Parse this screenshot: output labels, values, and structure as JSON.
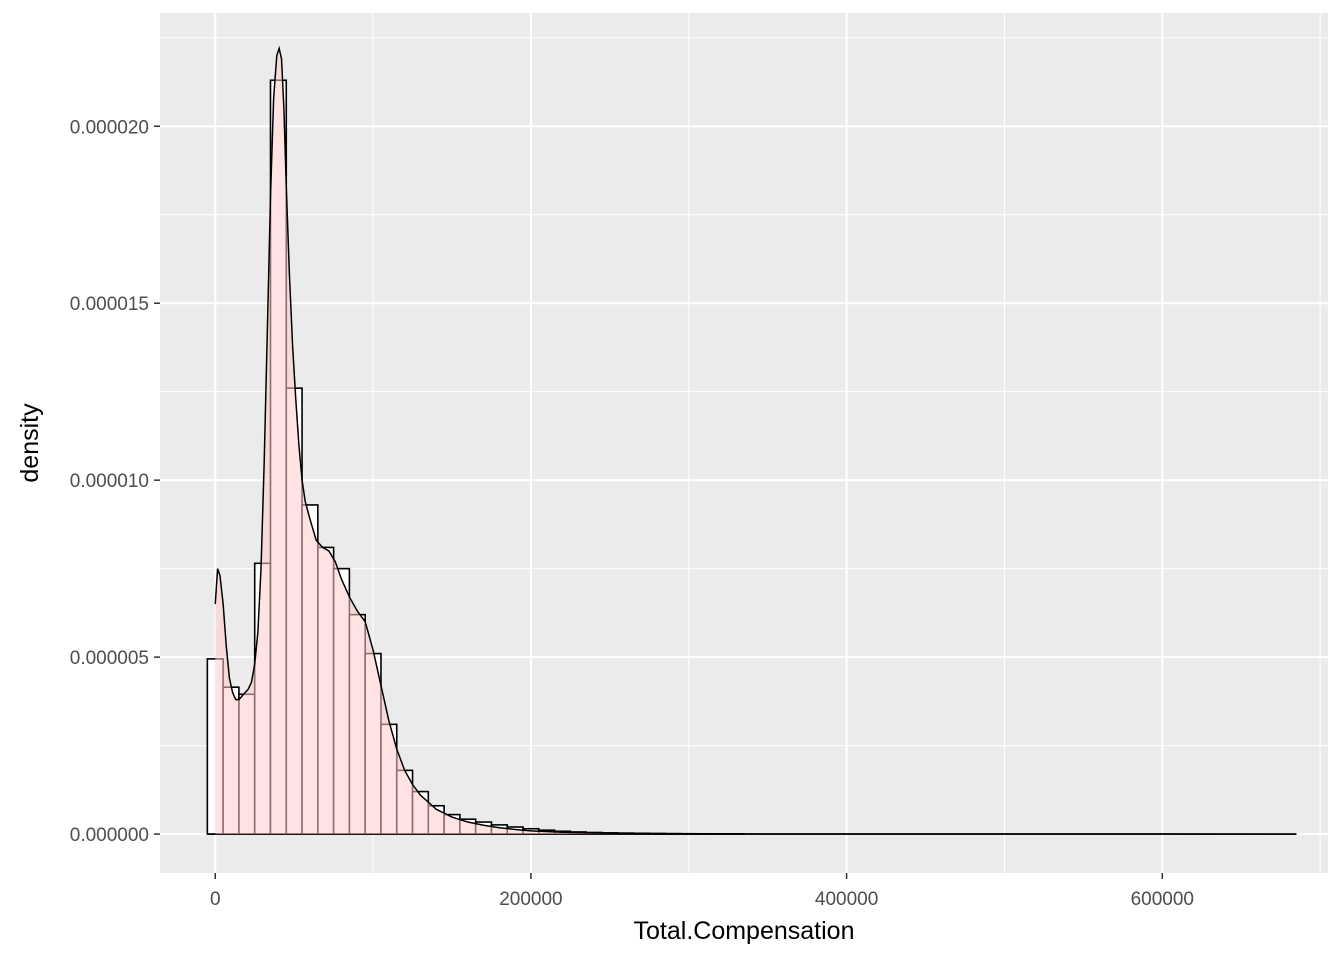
{
  "chart_data": {
    "type": "bar",
    "subtype": "histogram-with-density",
    "xlabel": "Total.Compensation",
    "ylabel": "density",
    "xlim": [
      -35000,
      705000
    ],
    "ylim": [
      -1.1e-06,
      2.32e-05
    ],
    "x_ticks": [
      0,
      200000,
      400000,
      600000
    ],
    "x_tick_labels": [
      "0",
      "200000",
      "400000",
      "600000"
    ],
    "y_ticks": [
      0,
      5e-06,
      1e-05,
      1.5e-05,
      2e-05
    ],
    "y_tick_labels": [
      "0.000000",
      "0.000005",
      "0.000010",
      "0.000015",
      "0.000020"
    ],
    "grid": true,
    "bin_width": 10000,
    "bins_start": -5000,
    "histogram_values": [
      4.95e-06,
      4.15e-06,
      3.95e-06,
      7.65e-06,
      2.13e-05,
      1.26e-05,
      9.3e-06,
      8.1e-06,
      7.5e-06,
      6.2e-06,
      5.1e-06,
      3.1e-06,
      1.8e-06,
      1.2e-06,
      8e-07,
      5.5e-07,
      4.2e-07,
      3.4e-07,
      2.6e-07,
      2e-07,
      1.5e-07,
      1.1e-07,
      8e-08,
      6e-08,
      4.5e-08,
      3.5e-08,
      2.8e-08,
      2.2e-08,
      1.8e-08,
      1.4e-08,
      1e-08,
      8e-09,
      6e-09,
      5e-09
    ],
    "density_curve": {
      "x": [
        0,
        1500,
        3000,
        5000,
        7000,
        9000,
        11000,
        13000,
        15000,
        17000,
        19000,
        21000,
        23000,
        25000,
        27000,
        29000,
        31000,
        33000,
        35000,
        37000,
        39000,
        40500,
        42000,
        43500,
        45000,
        47000,
        49000,
        51000,
        53000,
        55000,
        57000,
        60000,
        64000,
        68000,
        72000,
        76000,
        80000,
        85000,
        90000,
        95000,
        100000,
        105000,
        110000,
        115000,
        120000,
        125000,
        130000,
        140000,
        150000,
        160000,
        170000,
        180000,
        190000,
        200000,
        220000,
        240000,
        260000,
        280000,
        300000,
        350000,
        400000,
        500000,
        600000,
        685000
      ],
      "y": [
        6.5e-06,
        7.5e-06,
        7.3e-06,
        6.5e-06,
        5.3e-06,
        4.4e-06,
        4e-06,
        3.8e-06,
        3.8e-06,
        3.9e-06,
        4e-06,
        4.1e-06,
        4.3e-06,
        4.8e-06,
        5.7e-06,
        7.5e-06,
        1.05e-05,
        1.42e-05,
        1.8e-05,
        2.08e-05,
        2.2e-05,
        2.22e-05,
        2.19e-05,
        2.05e-05,
        1.83e-05,
        1.58e-05,
        1.38e-05,
        1.23e-05,
        1.1e-05,
        1e-05,
        9.4e-06,
        8.9e-06,
        8.3e-06,
        8.1e-06,
        8e-06,
        7.7e-06,
        7.2e-06,
        6.7e-06,
        6.3e-06,
        6e-06,
        5.2e-06,
        4.2e-06,
        3.2e-06,
        2.4e-06,
        1.8e-06,
        1.4e-06,
        1.1e-06,
        7e-07,
        4.8e-07,
        3.4e-07,
        2.5e-07,
        1.8e-07,
        1.3e-07,
        9e-08,
        5e-08,
        3e-08,
        1.8e-08,
        1e-08,
        6e-09,
        3e-09,
        2e-09,
        1e-09,
        5e-10,
        0
      ]
    },
    "colors": {
      "panel_background": "#ebebeb",
      "grid": "#ffffff",
      "bar_fill": "#ffffff",
      "bar_outline": "#000000",
      "density_fill": "#ffcccc",
      "density_line": "#000000"
    }
  }
}
